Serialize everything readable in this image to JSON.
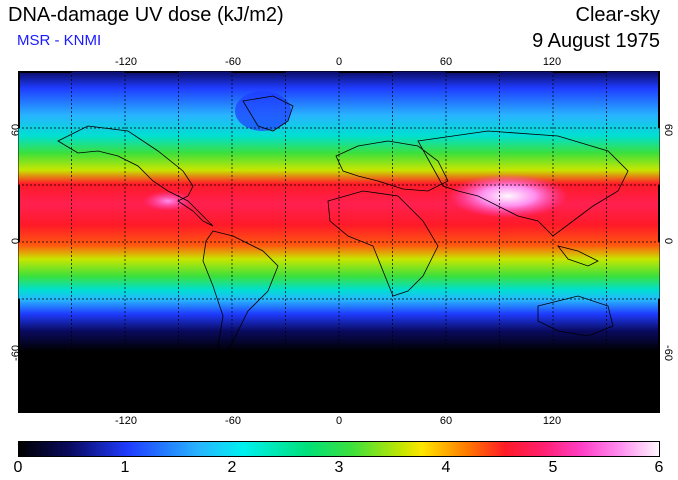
{
  "header": {
    "title": "DNA-damage UV dose (kJ/m2)",
    "source": "MSR - KNMI",
    "sky_condition": "Clear-sky",
    "date": "9 August 1975"
  },
  "map": {
    "lon_ticks": [
      "-120",
      "-60",
      "0",
      "60",
      "120"
    ],
    "lat_ticks": [
      "60",
      "0",
      "-60"
    ],
    "lon_range": [
      -180,
      180
    ],
    "lat_range": [
      -90,
      90
    ],
    "colors": {
      "polar": "#000000",
      "low": "#1f3cff",
      "mid_low": "#00f0f0",
      "mid": "#3ce03c",
      "high": "#ff1a28",
      "peak": "#ff40c8"
    }
  },
  "colorbar": {
    "labels": [
      "0",
      "1",
      "2",
      "3",
      "4",
      "5",
      "6"
    ],
    "min": 0,
    "max": 6
  }
}
